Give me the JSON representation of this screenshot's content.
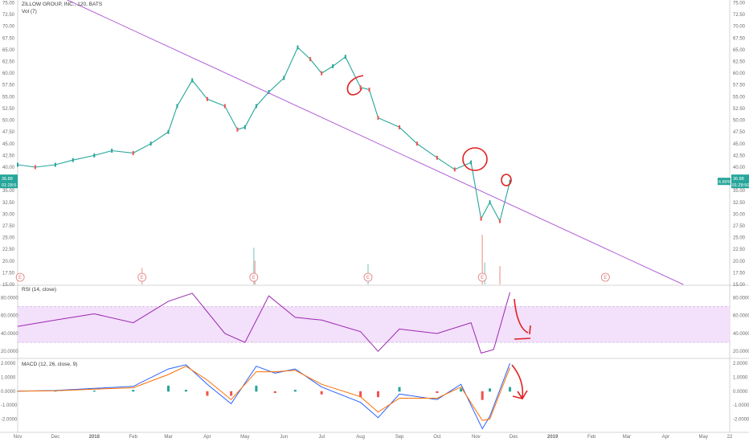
{
  "header": {
    "symbol_line": "ZILLOW GROUP, INC., 120, BATS",
    "volume_label": "Vol (7)",
    "rsi_label": "RSI (14, close)",
    "macd_label": "MACD (12, 26, close, 9)"
  },
  "price_badges": {
    "left_price": "36.88",
    "left_time": "01:28:5",
    "right_change": "6.89%",
    "right_price": "36.88",
    "right_time": "01:28:50"
  },
  "earnings_marker": "E",
  "colors": {
    "up": "#26a69a",
    "down": "#ef5350",
    "rsi_line": "#9c27b0",
    "rsi_band": "#f3e0fb",
    "macd_line": "#2962ff",
    "signal_line": "#ff6d00",
    "trendline": "#b05fd6",
    "annotation": "#e02020",
    "badge": "#26a69a"
  },
  "chart_data": [
    {
      "type": "line",
      "pane": "price",
      "title": "ZILLOW GROUP, INC., 120, BATS",
      "y_ticks": [
        "75.00",
        "72.50",
        "70.00",
        "67.50",
        "65.00",
        "62.50",
        "60.00",
        "57.50",
        "55.00",
        "52.50",
        "50.00",
        "47.50",
        "45.00",
        "42.50",
        "40.00",
        "37.50",
        "35.00",
        "32.50",
        "30.00",
        "27.50",
        "25.00",
        "22.50",
        "20.00",
        "17.50",
        "15.00"
      ],
      "ylim": [
        15,
        75.6
      ],
      "x_ticks": [
        "Nov",
        "Dec",
        "2018",
        "Feb",
        "Mar",
        "Apr",
        "May",
        "Jun",
        "Jul",
        "Aug",
        "Sep",
        "Oct",
        "Nov",
        "Dec",
        "2019",
        "Feb",
        "Mar",
        "Apr",
        "May",
        "22"
      ],
      "series": [
        {
          "x": [
            "2017-11-01",
            "2017-11-15",
            "2017-12-01",
            "2017-12-15",
            "2018-01-01",
            "2018-01-15",
            "2018-02-01",
            "2018-02-15",
            "2018-03-01",
            "2018-03-08",
            "2018-03-20",
            "2018-04-01",
            "2018-04-15",
            "2018-04-25",
            "2018-05-01",
            "2018-05-10",
            "2018-05-20",
            "2018-06-01",
            "2018-06-12",
            "2018-06-22",
            "2018-07-01",
            "2018-07-10",
            "2018-07-20",
            "2018-08-01",
            "2018-08-08",
            "2018-08-15",
            "2018-09-01",
            "2018-09-15",
            "2018-10-01",
            "2018-10-15",
            "2018-10-28",
            "2018-11-05",
            "2018-11-12",
            "2018-11-20",
            "2018-11-28"
          ],
          "values": [
            40.5,
            40.0,
            40.5,
            41.5,
            42.5,
            43.5,
            43.0,
            45.0,
            47.5,
            53.0,
            58.5,
            54.5,
            53.0,
            48.0,
            48.5,
            53.0,
            56.0,
            59.0,
            65.5,
            63.0,
            60.0,
            61.5,
            63.5,
            57.0,
            56.5,
            50.5,
            48.5,
            45.0,
            42.0,
            39.5,
            41.0,
            29.0,
            32.5,
            28.5,
            36.9
          ]
        }
      ],
      "trendline": {
        "x": [
          "2017-11-01",
          "2019-04-15"
        ],
        "values": [
          80.5,
          15.0
        ]
      },
      "earnings_dates": [
        "2017-11-03",
        "2018-02-08",
        "2018-05-08",
        "2018-08-07",
        "2018-11-06",
        "2019-02-12"
      ]
    },
    {
      "type": "bar",
      "pane": "volume",
      "title": "Vol (7)",
      "x": [
        "2018-02-08",
        "2018-05-08",
        "2018-05-09",
        "2018-08-07",
        "2018-11-06",
        "2018-11-08",
        "2018-11-20"
      ],
      "values": [
        0.45,
        1.0,
        0.65,
        0.55,
        1.35,
        0.6,
        0.5
      ]
    },
    {
      "type": "line",
      "pane": "rsi",
      "title": "RSI (14, close)",
      "y_ticks": [
        "80.0000",
        "60.0000",
        "40.0000",
        "20.0000"
      ],
      "ylim": [
        13,
        93
      ],
      "band": [
        30,
        70
      ],
      "x": [
        "2017-11-01",
        "2017-12-01",
        "2018-01-01",
        "2018-02-01",
        "2018-03-01",
        "2018-03-20",
        "2018-04-15",
        "2018-05-01",
        "2018-05-20",
        "2018-06-10",
        "2018-07-01",
        "2018-08-01",
        "2018-08-15",
        "2018-09-01",
        "2018-10-01",
        "2018-10-28",
        "2018-11-05",
        "2018-11-15",
        "2018-11-28"
      ],
      "values": [
        48,
        55,
        62,
        52,
        76,
        85,
        40,
        30,
        82,
        58,
        55,
        42,
        20,
        45,
        40,
        52,
        18,
        22,
        86
      ]
    },
    {
      "type": "line",
      "pane": "macd",
      "title": "MACD (12, 26, close, 9)",
      "y_ticks": [
        "2.0000",
        "1.0000",
        "0.0000",
        "-1.0000",
        "-2.0000"
      ],
      "ylim": [
        -2.9,
        2.3
      ],
      "x": [
        "2017-11-01",
        "2017-12-01",
        "2018-01-01",
        "2018-02-01",
        "2018-03-01",
        "2018-03-15",
        "2018-04-01",
        "2018-04-20",
        "2018-05-10",
        "2018-05-25",
        "2018-06-10",
        "2018-07-01",
        "2018-08-01",
        "2018-08-15",
        "2018-09-01",
        "2018-10-01",
        "2018-10-20",
        "2018-11-06",
        "2018-11-12",
        "2018-11-28"
      ],
      "series": [
        {
          "name": "MACD",
          "values": [
            0.0,
            0.05,
            0.2,
            0.35,
            1.6,
            1.9,
            0.5,
            -0.9,
            1.8,
            1.3,
            1.6,
            0.3,
            -0.8,
            -1.9,
            -0.2,
            -0.6,
            0.5,
            -2.7,
            -1.8,
            2.0
          ]
        },
        {
          "name": "Signal",
          "values": [
            0.0,
            0.03,
            0.15,
            0.25,
            1.2,
            1.8,
            0.8,
            -0.6,
            1.4,
            1.4,
            1.5,
            0.5,
            -0.4,
            -1.5,
            -0.5,
            -0.5,
            0.3,
            -2.1,
            -2.0,
            1.7
          ]
        }
      ]
    }
  ]
}
